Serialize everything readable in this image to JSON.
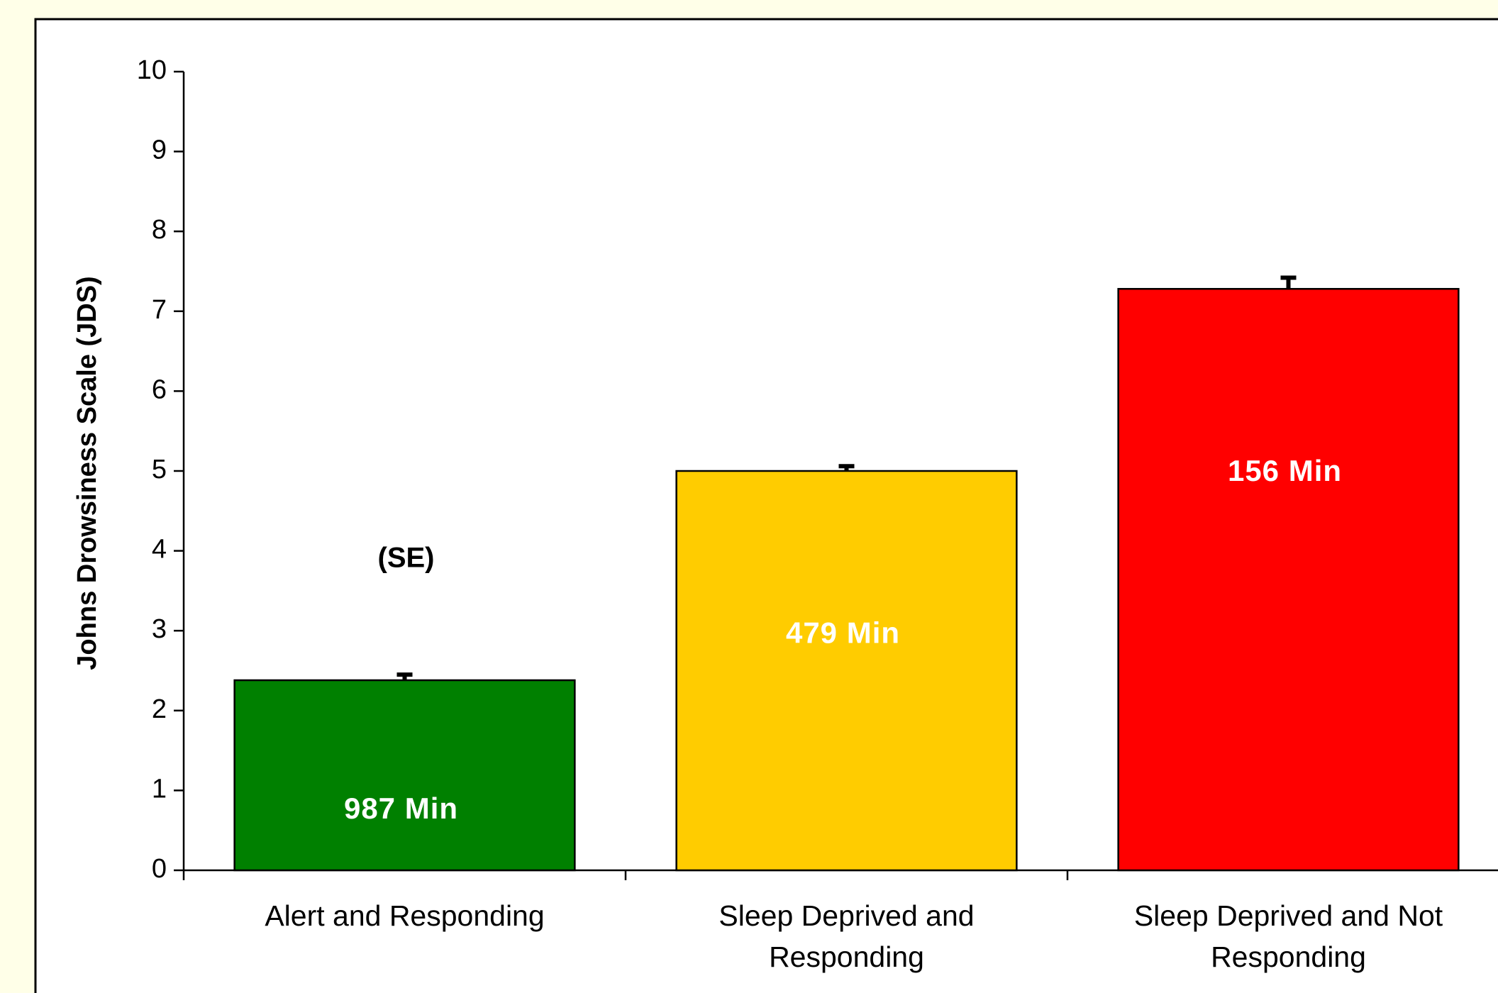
{
  "chart_data": {
    "type": "bar",
    "categories": [
      "Alert and Responding",
      "Sleep Deprived and Responding",
      "Sleep Deprived and Not Responding"
    ],
    "values": [
      2.38,
      5.0,
      7.28
    ],
    "errors": [
      0.07,
      0.06,
      0.14
    ],
    "colors": [
      "#008000",
      "#ffcc00",
      "#ff0000"
    ],
    "bar_labels": [
      "987 Min",
      "479 Min",
      "156 Min"
    ],
    "annotation": "(SE)",
    "ylabel": "Johns Drowsiness Scale (JDS)",
    "ylim": [
      0,
      10
    ],
    "yticks": [
      0,
      1,
      2,
      3,
      4,
      5,
      6,
      7,
      8,
      9,
      10
    ],
    "grid": false
  }
}
